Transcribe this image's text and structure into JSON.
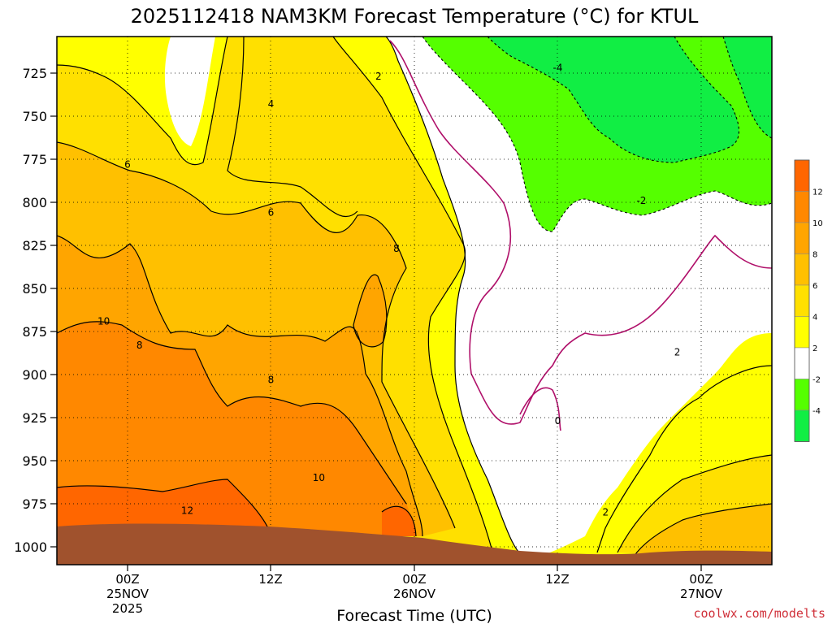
{
  "chart_data": {
    "type": "heatmap",
    "title": "2025112418 NAM3KM Forecast Temperature (°C) for KTUL",
    "xlabel": "Forecast Time (UTC)",
    "ylabel": "",
    "y_axis": {
      "quantity": "pressure (hPa)",
      "ticks": [
        725,
        750,
        775,
        800,
        825,
        850,
        875,
        900,
        925,
        950,
        975,
        1000
      ],
      "range": [
        700,
        1010
      ],
      "inverted": true
    },
    "x_axis": {
      "ticks": [
        {
          "lines": [
            "00Z",
            "25NOV",
            "2025"
          ]
        },
        {
          "lines": [
            "12Z"
          ]
        },
        {
          "lines": [
            "00Z",
            "26NOV"
          ]
        },
        {
          "lines": [
            "12Z"
          ]
        },
        {
          "lines": [
            "00Z",
            "27NOV"
          ]
        }
      ]
    },
    "grid": true,
    "contour_labels": [
      {
        "label": "2",
        "time": 21.0,
        "pressure": 727
      },
      {
        "label": "4",
        "time": 12.0,
        "pressure": 743
      },
      {
        "label": "6",
        "time": 0.0,
        "pressure": 778
      },
      {
        "label": "6",
        "time": 12.0,
        "pressure": 806
      },
      {
        "label": "8",
        "time": 22.5,
        "pressure": 827
      },
      {
        "label": "10",
        "time": -2.0,
        "pressure": 869
      },
      {
        "label": "8",
        "time": 1.0,
        "pressure": 883
      },
      {
        "label": "8",
        "time": 12.0,
        "pressure": 903
      },
      {
        "label": "10",
        "time": 16.0,
        "pressure": 960
      },
      {
        "label": "12",
        "time": 5.0,
        "pressure": 979
      },
      {
        "label": "-4",
        "time": 36.0,
        "pressure": 722
      },
      {
        "label": "-2",
        "time": 43.0,
        "pressure": 799
      },
      {
        "label": "2",
        "time": 46.0,
        "pressure": 887
      },
      {
        "label": "0",
        "time": 36.0,
        "pressure": 927
      },
      {
        "label": "2",
        "time": 40.0,
        "pressure": 980
      }
    ],
    "colorbar": {
      "ticks": [
        12,
        10,
        8,
        6,
        4,
        2,
        -2,
        -4
      ],
      "bins": [
        {
          "range": [
            12,
            14
          ],
          "color": "#ff6600"
        },
        {
          "range": [
            10,
            12
          ],
          "color": "#ff8800"
        },
        {
          "range": [
            8,
            10
          ],
          "color": "#ffa500"
        },
        {
          "range": [
            6,
            8
          ],
          "color": "#ffc000"
        },
        {
          "range": [
            4,
            6
          ],
          "color": "#ffe000"
        },
        {
          "range": [
            2,
            4
          ],
          "color": "#ffff00"
        },
        {
          "range": [
            -2,
            2
          ],
          "color": "#ffffff"
        },
        {
          "range": [
            -4,
            -2
          ],
          "color": "#55ff00"
        },
        {
          "range": [
            -6,
            -4
          ],
          "color": "#11ee44"
        }
      ]
    }
  },
  "credit": "coolwx.com/modelts",
  "colors": {
    "ground": "#a0522d",
    "zero_contour": "#b0106a",
    "contour": "#000000"
  }
}
